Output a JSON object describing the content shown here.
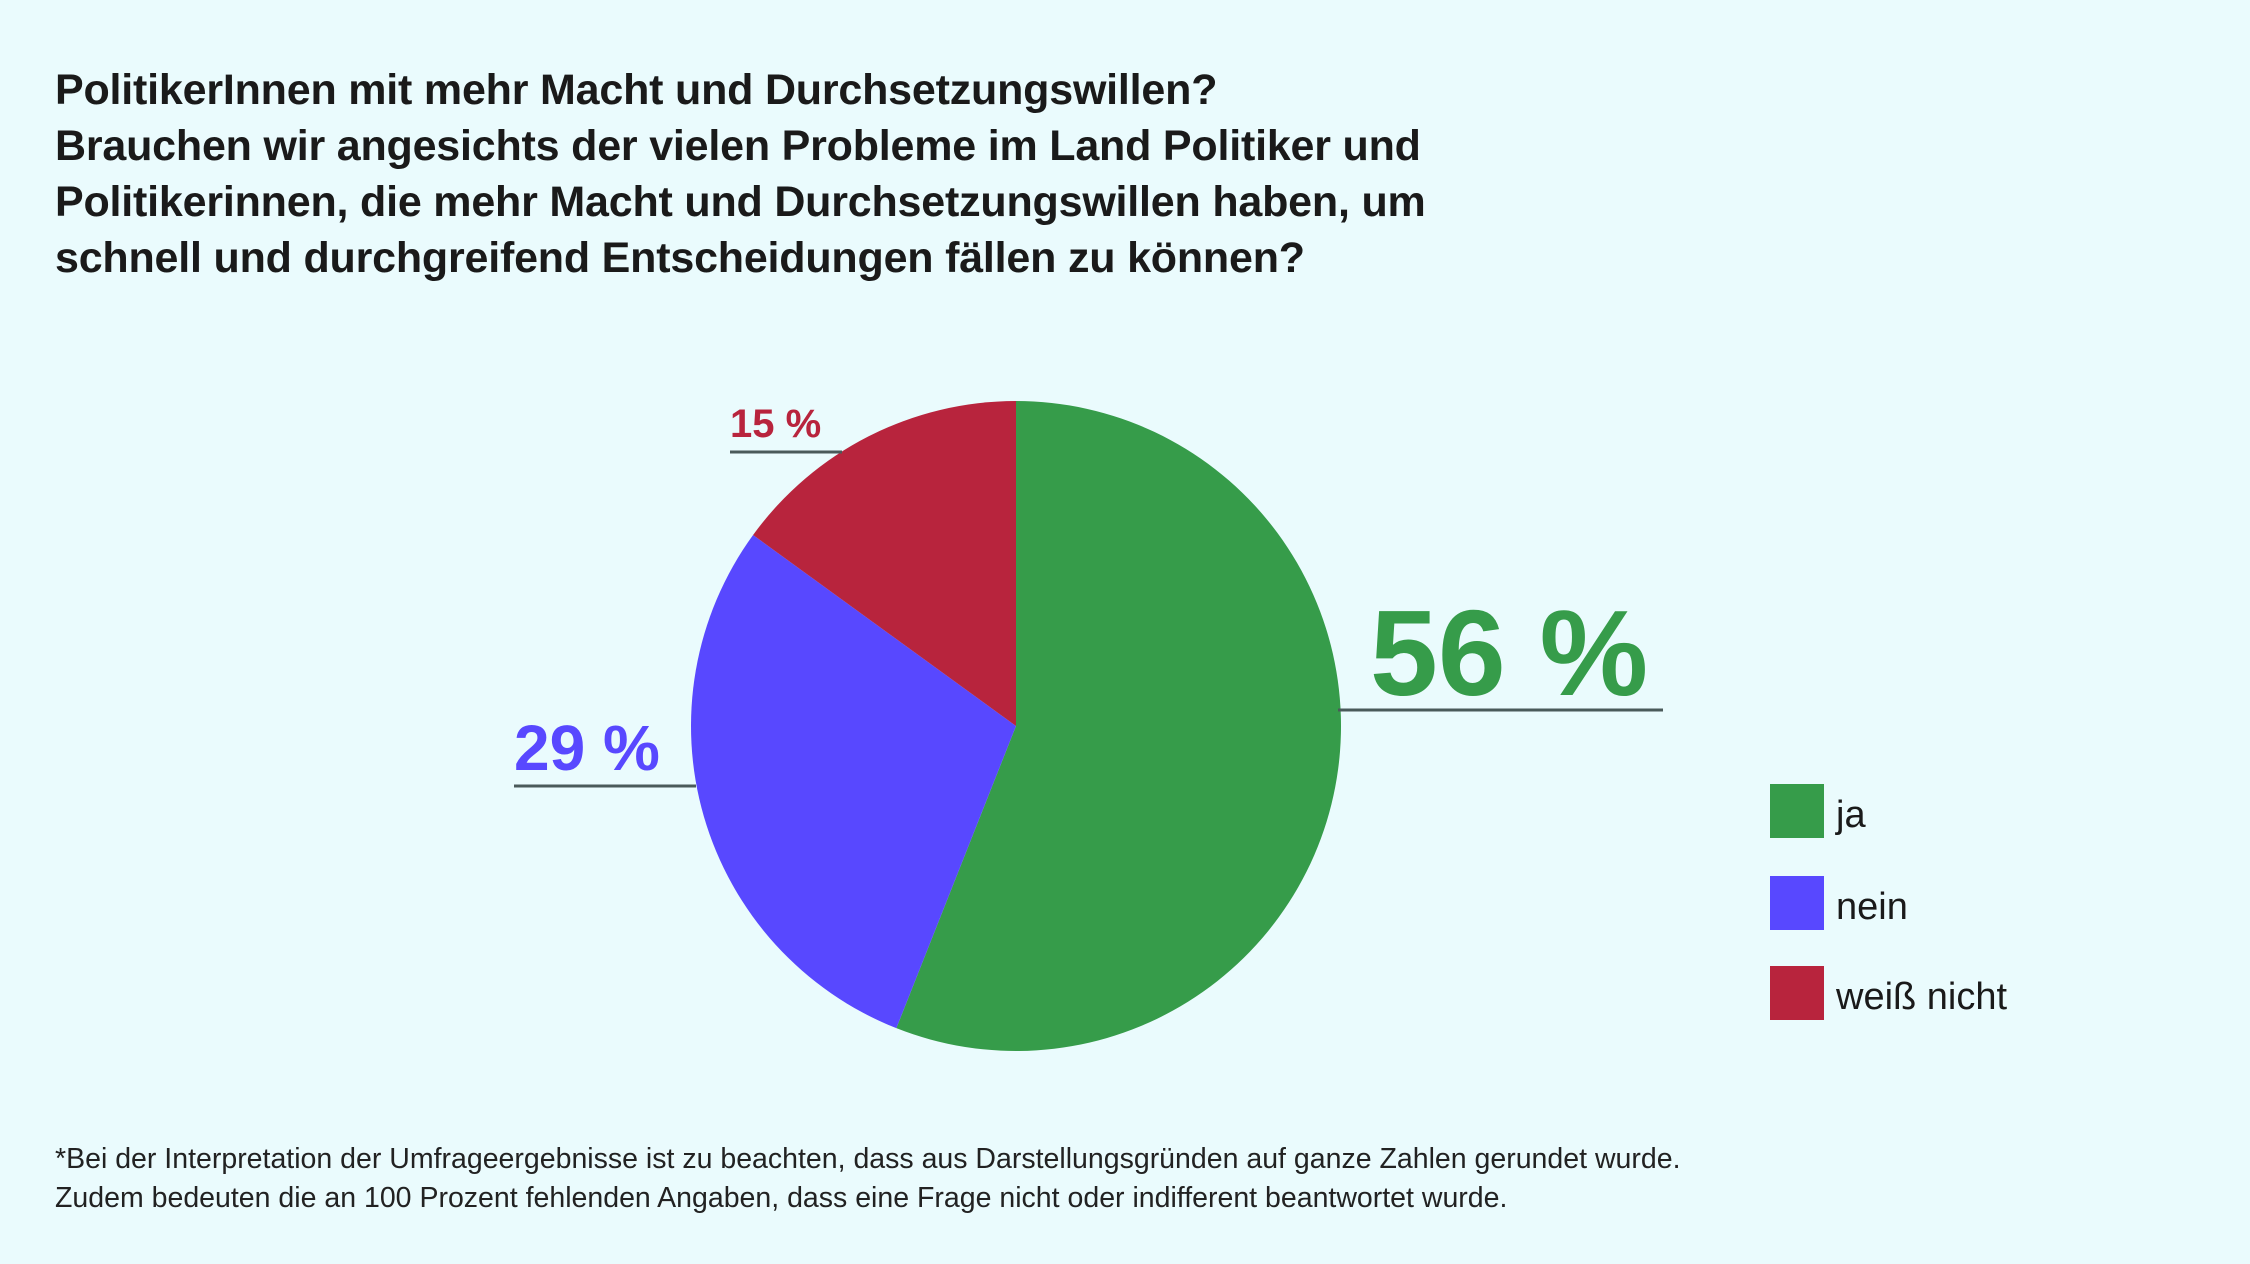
{
  "title": {
    "heading": "PolitikerInnen mit mehr Macht und Durchsetzungswillen?",
    "question_lines": [
      "Brauchen wir angesichts der vielen Probleme im Land Politiker und",
      "Politikerinnen, die mehr Macht und Durchsetzungswillen haben, um",
      "schnell und durchgreifend Entscheidungen fällen zu können?"
    ]
  },
  "chart_data": {
    "type": "pie",
    "title": "PolitikerInnen mit mehr Macht und Durchsetzungswillen?",
    "slices": [
      {
        "label": "ja",
        "value": 56,
        "display": "56 %",
        "color": "#369c4a"
      },
      {
        "label": "nein",
        "value": 29,
        "display": "29 %",
        "color": "#5848ff"
      },
      {
        "label": "weiß nicht",
        "value": 15,
        "display": "15 %",
        "color": "#b8243d"
      }
    ],
    "start_angle": "12 o'clock",
    "direction": "clockwise",
    "legend_position": "right"
  },
  "footnote": {
    "lines": [
      "*Bei der Interpretation der Umfrageergebnisse ist zu beachten, dass aus Darstellungsgründen auf ganze Zahlen gerundet wurde.",
      "Zudem bedeuten die an 100 Prozent fehlenden Angaben, dass eine Frage nicht oder indifferent beantwortet wurde."
    ]
  }
}
